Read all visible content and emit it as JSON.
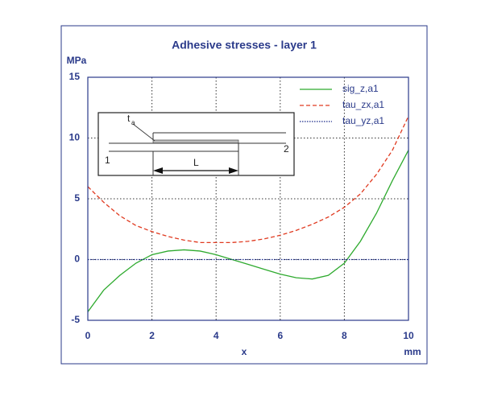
{
  "chart_data": {
    "type": "line",
    "title": "Adhesive stresses - layer 1",
    "y_unit": "MPa",
    "x_label": "x",
    "x_unit": "mm",
    "x": [
      0,
      0.5,
      1,
      1.5,
      2,
      2.5,
      3,
      3.5,
      4,
      4.5,
      5,
      5.5,
      6,
      6.5,
      7,
      7.5,
      8,
      8.5,
      9,
      9.5,
      10
    ],
    "series": [
      {
        "name": "sig_z,a1",
        "color": "#2eaa2e",
        "style": "solid",
        "values": [
          -4.3,
          -2.5,
          -1.3,
          -0.3,
          0.4,
          0.7,
          0.8,
          0.7,
          0.4,
          0,
          -0.4,
          -0.8,
          -1.2,
          -1.5,
          -1.6,
          -1.3,
          -0.3,
          1.5,
          3.8,
          6.5,
          9
        ]
      },
      {
        "name": "tau_zx,a1",
        "color": "#e03a20",
        "style": "dashed",
        "values": [
          6,
          4.7,
          3.6,
          2.8,
          2.3,
          1.9,
          1.6,
          1.4,
          1.4,
          1.4,
          1.5,
          1.7,
          2,
          2.4,
          2.9,
          3.5,
          4.3,
          5.4,
          7,
          9,
          11.8
        ]
      },
      {
        "name": "tau_yz,a1",
        "color": "#1a2a8a",
        "style": "dotted",
        "values": [
          0,
          0,
          0,
          0,
          0,
          0,
          0,
          0,
          0,
          0,
          0,
          0,
          0,
          0,
          0,
          0,
          0,
          0,
          0,
          0,
          0
        ]
      }
    ],
    "xlim": [
      0,
      10
    ],
    "xticks": [
      0,
      2,
      4,
      6,
      8,
      10
    ],
    "ylim": [
      -5,
      15
    ],
    "yticks": [
      -5,
      0,
      5,
      10,
      15
    ],
    "grid": true,
    "legend": "upper right",
    "inset": {
      "t": "t",
      "sub": "a",
      "end1": "1",
      "end2": "2",
      "length": "L"
    }
  }
}
